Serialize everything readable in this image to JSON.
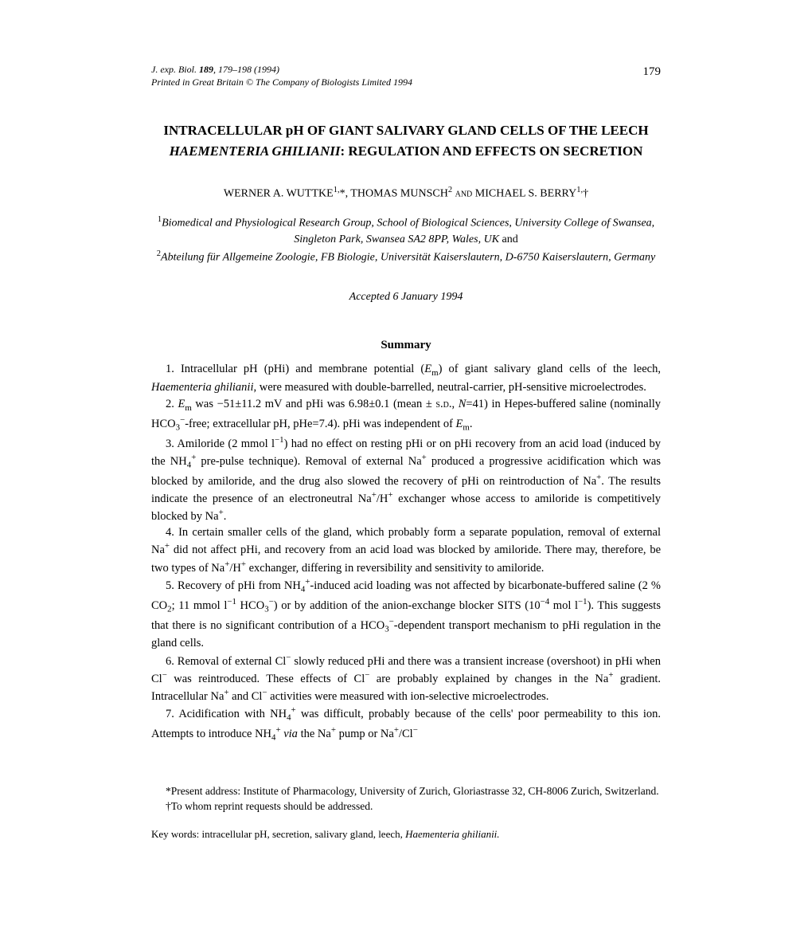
{
  "header": {
    "journal_line1": "J. exp. Biol.",
    "journal_vol": "189",
    "journal_pages": ", 179–198 (1994)",
    "journal_line2": "Printed in Great Britain © The Company of Biologists Limited 1994",
    "page_number": "179"
  },
  "title": {
    "part1": "INTRACELLULAR pH OF GIANT SALIVARY GLAND CELLS OF THE LEECH ",
    "italic": "HAEMENTERIA GHILIANII",
    "part2": ": REGULATION AND EFFECTS ON SECRETION"
  },
  "authors": "WERNER A. WUTTKE¹,*, THOMAS MUNSCH² AND MICHAEL S. BERRY¹,†",
  "affiliations": {
    "line1_sup": "1",
    "line1": "Biomedical and Physiological Research Group, School of Biological Sciences, University College of Swansea, Singleton Park, Swansea SA2 8PP, Wales, UK",
    "and": " and ",
    "line2_sup": "2",
    "line2": "Abteilung für Allgemeine Zoologie, FB Biologie, Universität Kaiserslautern, D-6750 Kaiserslautern, Germany"
  },
  "accepted": "Accepted 6 January 1994",
  "summary_heading": "Summary",
  "summary": {
    "p1": "1. Intracellular pH (pHi) and membrane potential (Em) of giant salivary gland cells of the leech, Haementeria ghilianii, were measured with double-barrelled, neutral-carrier, pH-sensitive microelectrodes.",
    "p2": "2. Em was −51±11.2 mV and pHi was 6.98±0.1 (mean ± S.D., N=41) in Hepes-buffered saline (nominally HCO3−-free; extracellular pH, pHe=7.4). pHi was independent of Em.",
    "p3": "3. Amiloride (2 mmol l−1) had no effect on resting pHi or on pHi recovery from an acid load (induced by the NH4+ pre-pulse technique). Removal of external Na+ produced a progressive acidification which was blocked by amiloride, and the drug also slowed the recovery of pHi on reintroduction of Na+. The results indicate the presence of an electroneutral Na+/H+ exchanger whose access to amiloride is competitively blocked by Na+.",
    "p4": "4. In certain smaller cells of the gland, which probably form a separate population, removal of external Na+ did not affect pHi, and recovery from an acid load was blocked by amiloride. There may, therefore, be two types of Na+/H+ exchanger, differing in reversibility and sensitivity to amiloride.",
    "p5": "5. Recovery of pHi from NH4+-induced acid loading was not affected by bicarbonate-buffered saline (2 % CO2; 11 mmol l−1 HCO3−) or by addition of the anion-exchange blocker SITS (10−4 mol l−1). This suggests that there is no significant contribution of a HCO3−-dependent transport mechanism to pHi regulation in the gland cells.",
    "p6": "6. Removal of external Cl− slowly reduced pHi and there was a transient increase (overshoot) in pHi when Cl− was reintroduced. These effects of Cl− are probably explained by changes in the Na+ gradient. Intracellular Na+ and Cl− activities were measured with ion-selective microelectrodes.",
    "p7": "7. Acidification with NH4+ was difficult, probably because of the cells' poor permeability to this ion. Attempts to introduce NH4+ via the Na+ pump or Na+/Cl−"
  },
  "footer": {
    "note1": "*Present address: Institute of Pharmacology, University of Zurich, Gloriastrasse 32, CH-8006 Zurich, Switzerland.",
    "note2": "†To whom reprint requests should be addressed.",
    "keywords": "Key words: intracellular pH, secretion, salivary gland, leech, Haementeria ghilianii."
  }
}
